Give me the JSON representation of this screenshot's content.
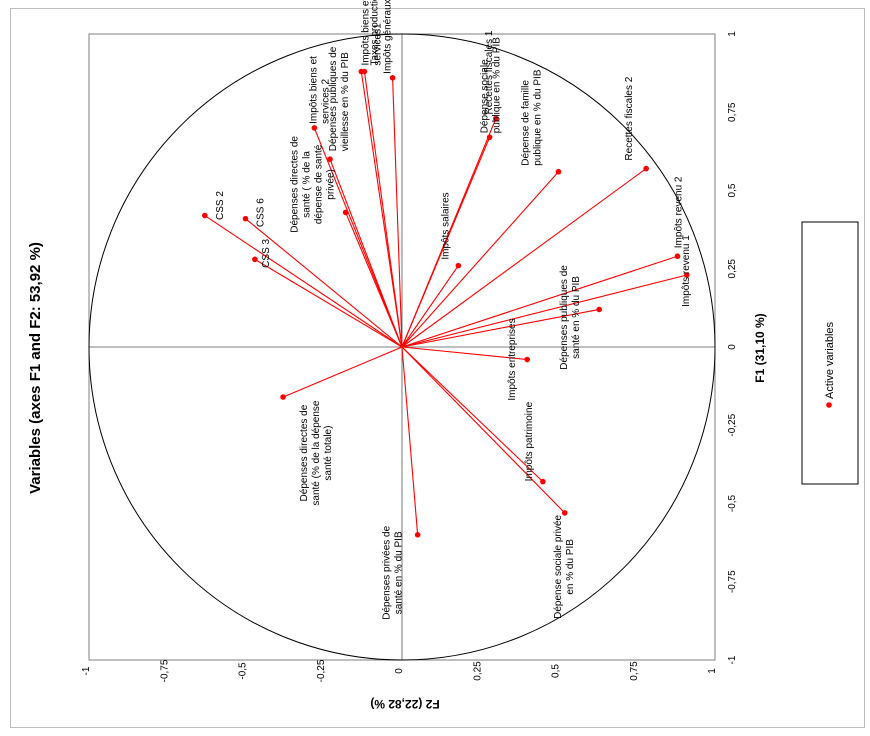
{
  "chart_data": {
    "type": "scatter",
    "title": "Variables (axes F1 and F2: 53,92 %)",
    "xlabel": "F1 (31,10 %)",
    "ylabel": "F2 (22,82 %)",
    "xlim": [
      -1,
      1
    ],
    "ylim": [
      -1,
      1
    ],
    "x_ticks": [
      "-1",
      "-0,75",
      "-0,5",
      "-0,25",
      "0",
      "0,25",
      "0,5",
      "0,75",
      "1"
    ],
    "y_ticks": [
      "-1",
      "-0,75",
      "-0,5",
      "-0,25",
      "0",
      "0,25",
      "0,5",
      "0,75",
      "1"
    ],
    "grid": false,
    "legend": {
      "position": "right",
      "entries": [
        "Active variables"
      ]
    },
    "series": [
      {
        "name": "Active variables",
        "color": "#ff0000",
        "points": [
          {
            "label": "Impôts revenu 1",
            "x": 0.23,
            "y": 0.91
          },
          {
            "label": "Impôts revenu 2",
            "x": 0.29,
            "y": 0.88
          },
          {
            "label": "Recettes fiscales 2",
            "x": 0.57,
            "y": 0.78
          },
          {
            "label": "Dépenses publiques de santé en % du PIB",
            "x": 0.12,
            "y": 0.63
          },
          {
            "label": "Dépense de famille publique en % du PIB",
            "x": 0.56,
            "y": 0.5
          },
          {
            "label": "Impôts salaires",
            "x": 0.26,
            "y": 0.18
          },
          {
            "label": "Recettes fiscales 1",
            "x": 0.73,
            "y": 0.3
          },
          {
            "label": "Dépense sociale publique en % du PIB",
            "x": 0.67,
            "y": 0.28
          },
          {
            "label": "Impôts entreprises",
            "x": -0.04,
            "y": 0.4
          },
          {
            "label": "Impôts patrimoine",
            "x": -0.43,
            "y": 0.45
          },
          {
            "label": "Dépense sociale privée en % du PIB",
            "x": -0.53,
            "y": 0.52
          },
          {
            "label": "Dépenses privées de santé en % du PIB",
            "x": -0.6,
            "y": 0.05
          },
          {
            "label": "Impôts généraux",
            "x": 0.86,
            "y": -0.03
          },
          {
            "label": "Impôts biens et services1",
            "x": 0.88,
            "y": -0.12
          },
          {
            "label": "Taxes production",
            "x": 0.88,
            "y": -0.13
          },
          {
            "label": "Dépenses publiques de vieillesse en % du PIB",
            "x": 0.6,
            "y": -0.23
          },
          {
            "label": "Impôts biens et services 2",
            "x": 0.7,
            "y": -0.28
          },
          {
            "label": "Dépenses directes de santé ( % de la dépense de santé privée)",
            "x": 0.43,
            "y": -0.18
          },
          {
            "label": "CSS 6",
            "x": 0.41,
            "y": -0.5
          },
          {
            "label": "CSS 2",
            "x": 0.42,
            "y": -0.63
          },
          {
            "label": "CSS 3",
            "x": 0.28,
            "y": -0.47
          },
          {
            "label": "Dépenses directes de santé (% de la dépense santé totale)",
            "x": -0.16,
            "y": -0.38
          }
        ]
      }
    ]
  }
}
